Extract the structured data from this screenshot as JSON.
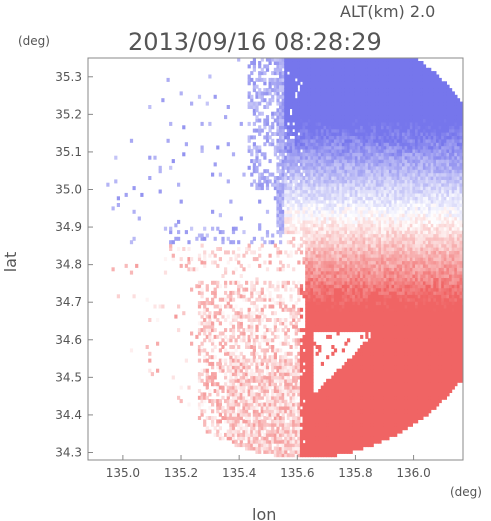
{
  "chart_data": {
    "type": "heatmap",
    "title": "2013/09/16 08:28:29",
    "altitude_label": "ALT(km) 2.0",
    "xlabel": "lon",
    "ylabel": "lat",
    "x_unit": "(deg)",
    "y_unit": "(deg)",
    "xlim": [
      134.88,
      136.17
    ],
    "ylim": [
      34.28,
      35.35
    ],
    "x_ticks": [
      "135.0",
      "135.2",
      "135.4",
      "135.6",
      "135.8",
      "136.0"
    ],
    "y_ticks": [
      "34.3",
      "34.4",
      "34.5",
      "34.6",
      "34.7",
      "34.8",
      "34.9",
      "35.0",
      "35.1",
      "35.2",
      "35.3"
    ],
    "grid": false,
    "colors": {
      "toward": "#7777ee",
      "away": "#ee6666",
      "zero": "#ffffff"
    },
    "radar": {
      "center": [
        135.62,
        34.86
      ],
      "range_deg_lon": 0.68
    }
  }
}
